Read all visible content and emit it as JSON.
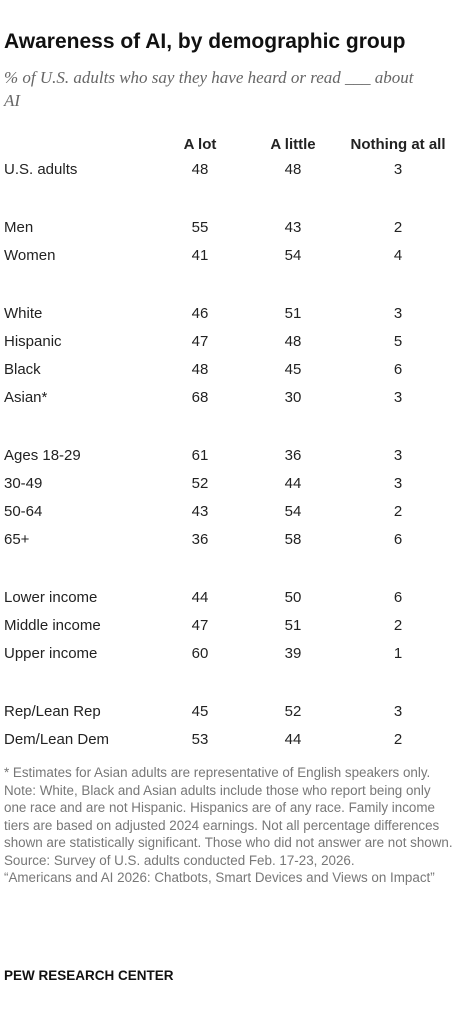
{
  "header": {
    "title": "Awareness of AI, by demographic group",
    "subtitle": "% of U.S. adults who say they have heard or read ___ about AI"
  },
  "table": {
    "columns": [
      "A lot",
      "A little",
      "Nothing at all"
    ],
    "groups": [
      [
        {
          "label": "U.S. adults",
          "values": [
            48,
            48,
            3
          ]
        }
      ],
      [
        {
          "label": "Men",
          "values": [
            55,
            43,
            2
          ]
        },
        {
          "label": "Women",
          "values": [
            41,
            54,
            4
          ]
        }
      ],
      [
        {
          "label": "White",
          "values": [
            46,
            51,
            3
          ]
        },
        {
          "label": "Hispanic",
          "values": [
            47,
            48,
            5
          ]
        },
        {
          "label": "Black",
          "values": [
            48,
            45,
            6
          ]
        },
        {
          "label": "Asian*",
          "values": [
            68,
            30,
            3
          ]
        }
      ],
      [
        {
          "label": "Ages 18-29",
          "values": [
            61,
            36,
            3
          ]
        },
        {
          "label": "30-49",
          "values": [
            52,
            44,
            3
          ]
        },
        {
          "label": "50-64",
          "values": [
            43,
            54,
            2
          ]
        },
        {
          "label": "65+",
          "values": [
            36,
            58,
            6
          ]
        }
      ],
      [
        {
          "label": "Lower income",
          "values": [
            44,
            50,
            6
          ]
        },
        {
          "label": "Middle income",
          "values": [
            47,
            51,
            2
          ]
        },
        {
          "label": "Upper income",
          "values": [
            60,
            39,
            1
          ]
        }
      ],
      [
        {
          "label": "Rep/Lean Rep",
          "values": [
            45,
            52,
            3
          ]
        },
        {
          "label": "Dem/Lean Dem",
          "values": [
            53,
            44,
            2
          ]
        }
      ]
    ]
  },
  "notes": [
    "* Estimates for Asian adults are representative of English speakers only.",
    "Note: White, Black and Asian adults include those who report being only one race and are not Hispanic. Hispanics are of any race. Family income tiers are based on adjusted 2024 earnings. Not all percentage differences shown are statistically significant. Those who did not answer are not shown.",
    "Source: Survey of U.S. adults conducted Feb. 17-23, 2026.",
    "“Americans and AI 2026: Chatbots, Smart Devices and Views on Impact”"
  ],
  "footer": "PEW RESEARCH CENTER"
}
